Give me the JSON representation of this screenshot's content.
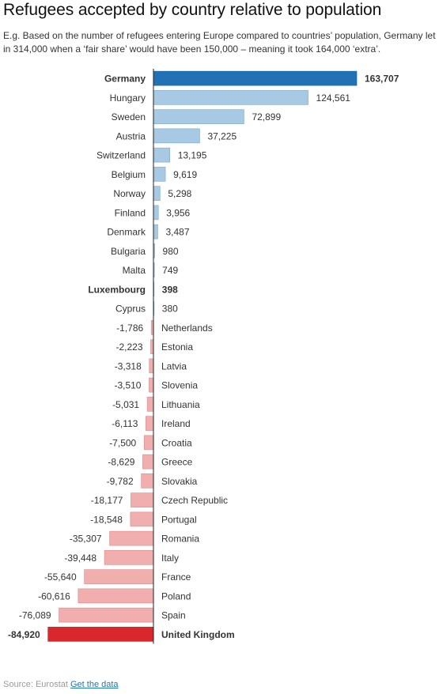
{
  "header": {
    "title": "Refugees accepted by country relative to population",
    "subtitle": "E.g. Based on the number of refugees entering Europe compared to countries’ population, Germany let in 314,000 when a ‘fair share’ would have been 150,000 – meaning it took 164,000 ‘extra’."
  },
  "footer": {
    "source_label": "Source: Eurostat",
    "link_label": "Get the data"
  },
  "colors": {
    "highlight_positive": "#2171b5",
    "positive": "#a8c9e3",
    "negative": "#f0aeae",
    "highlight_negative": "#d9282b",
    "axis": "#222222"
  },
  "chart_data": {
    "type": "bar",
    "orientation": "horizontal",
    "categories": [
      "Germany",
      "Hungary",
      "Sweden",
      "Austria",
      "Switzerland",
      "Belgium",
      "Norway",
      "Finland",
      "Denmark",
      "Bulgaria",
      "Malta",
      "Luxembourg",
      "Cyprus",
      "Netherlands",
      "Estonia",
      "Latvia",
      "Slovenia",
      "Lithuania",
      "Ireland",
      "Croatia",
      "Greece",
      "Slovakia",
      "Czech Republic",
      "Portugal",
      "Romania",
      "Italy",
      "France",
      "Poland",
      "Spain",
      "United Kingdom"
    ],
    "values": [
      163707,
      124561,
      72899,
      37225,
      13195,
      9619,
      5298,
      3956,
      3487,
      980,
      749,
      398,
      380,
      -1786,
      -2223,
      -3318,
      -3510,
      -5031,
      -6113,
      -7500,
      -8629,
      -9782,
      -18177,
      -18548,
      -35307,
      -39448,
      -55640,
      -60616,
      -76089,
      -84920
    ],
    "value_labels": [
      "163,707",
      "124,561",
      "72,899",
      "37,225",
      "13,195",
      "9,619",
      "5,298",
      "3,956",
      "3,487",
      "980",
      "749",
      "398",
      "380",
      "-1,786",
      "-2,223",
      "-3,318",
      "-3,510",
      "-5,031",
      "-6,113",
      "-7,500",
      "-8,629",
      "-9,782",
      "-18,177",
      "-18,548",
      "-35,307",
      "-39,448",
      "-55,640",
      "-60,616",
      "-76,089",
      "-84,920"
    ],
    "highlighted": [
      "Germany",
      "Luxembourg",
      "United Kingdom"
    ],
    "xlim": [
      -84920,
      163707
    ],
    "xlabel": "",
    "ylabel": "",
    "legend": "none",
    "grid": false
  }
}
